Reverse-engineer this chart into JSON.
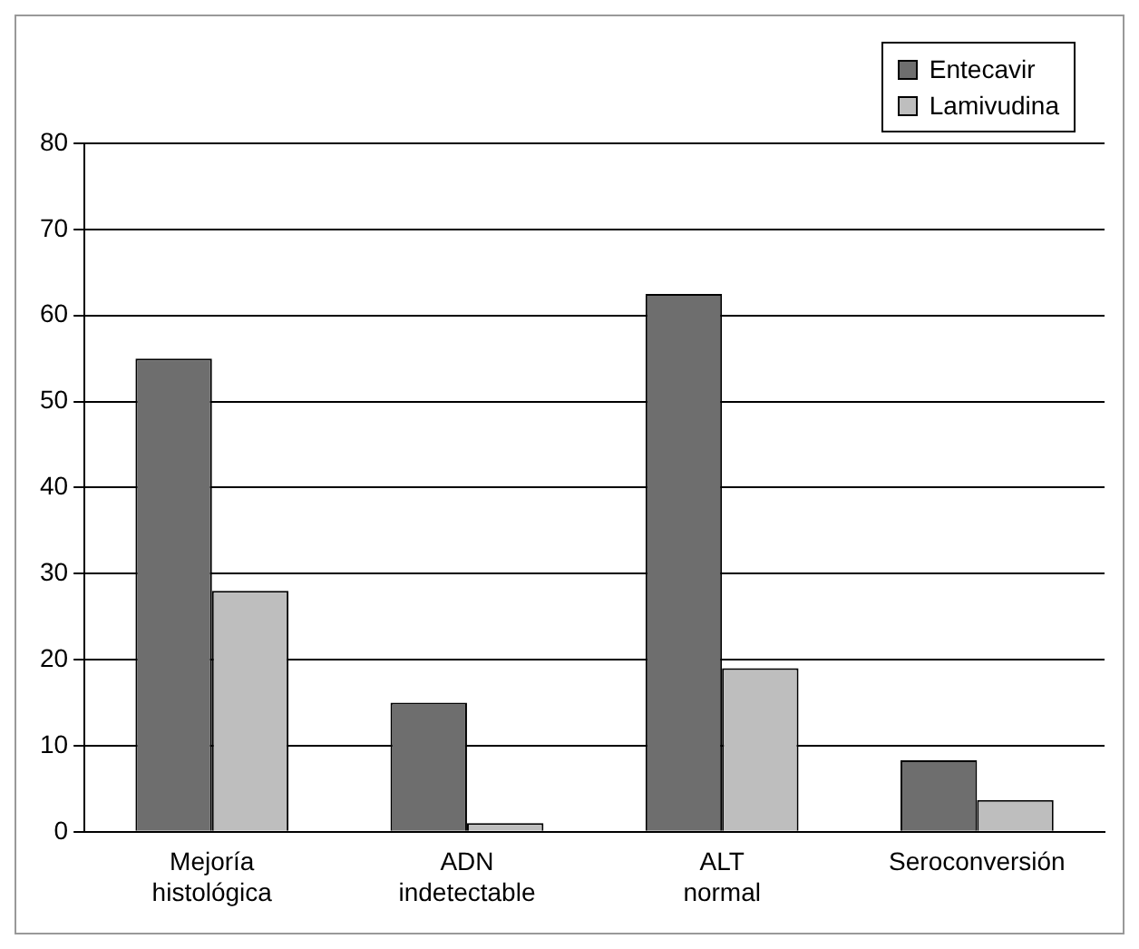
{
  "chart_data": {
    "type": "bar",
    "categories": [
      "Mejoría histológica",
      "ADN indetectable",
      "ALT normal",
      "Seroconversión"
    ],
    "series": [
      {
        "name": "Entecavir",
        "color": "#6e6e6e",
        "values": [
          55,
          15,
          62.5,
          8.3
        ]
      },
      {
        "name": "Lamivudina",
        "color": "#bebebe",
        "values": [
          28,
          1,
          19,
          3.7
        ]
      }
    ],
    "ylim": [
      0,
      80
    ],
    "yticks": [
      0,
      10,
      20,
      30,
      40,
      50,
      60,
      70,
      80
    ],
    "grid": "y",
    "legend": "top right"
  }
}
